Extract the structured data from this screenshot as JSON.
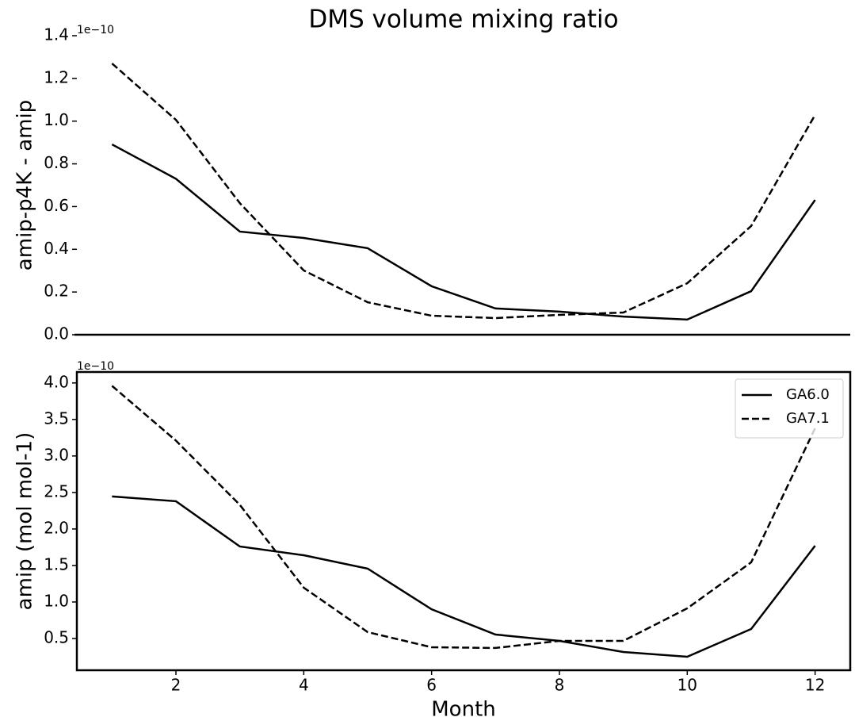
{
  "chart_data": [
    {
      "type": "line",
      "title": "DMS volume mixing ratio",
      "ylabel": "amip-p4K - amip",
      "offset_text": "1e−10",
      "x": [
        1,
        2,
        3,
        4,
        5,
        6,
        7,
        8,
        9,
        10,
        11,
        12
      ],
      "series": [
        {
          "name": "GA6.0",
          "color": "#000000",
          "linestyle": "solid",
          "values": [
            0.891,
            0.73,
            0.483,
            0.453,
            0.405,
            0.227,
            0.123,
            0.108,
            0.085,
            0.071,
            0.204,
            0.631
          ]
        },
        {
          "name": "GA7.1",
          "color": "#000000",
          "linestyle": "dashed",
          "values": [
            1.27,
            1.006,
            0.616,
            0.301,
            0.152,
            0.089,
            0.078,
            0.093,
            0.104,
            0.241,
            0.509,
            1.029
          ]
        }
      ],
      "xlim": [
        0.45,
        12.55
      ],
      "ylim": [
        0,
        1.4
      ],
      "yticks": [
        {
          "value": 0,
          "label": "0.0"
        },
        0.2,
        0.4,
        0.6,
        0.8,
        {
          "value": 1,
          "label": "1.0"
        },
        1.2,
        1.4
      ]
    },
    {
      "type": "line",
      "ylabel": "amip (mol mol-1)",
      "xlabel": "Month",
      "offset_text": "1e−10",
      "legend": "upper right",
      "x": [
        1,
        2,
        3,
        4,
        5,
        6,
        7,
        8,
        9,
        10,
        11,
        12
      ],
      "series": [
        {
          "name": "GA6.0",
          "color": "#000000",
          "linestyle": "solid",
          "values": [
            2.446,
            2.38,
            1.76,
            1.64,
            1.457,
            0.9,
            0.554,
            0.467,
            0.315,
            0.25,
            0.63,
            1.77
          ]
        },
        {
          "name": "GA7.1",
          "color": "#000000",
          "linestyle": "dashed",
          "values": [
            3.96,
            3.21,
            2.33,
            1.196,
            0.587,
            0.38,
            0.37,
            0.467,
            0.467,
            0.913,
            1.543,
            3.38
          ]
        }
      ],
      "xlim": [
        0.45,
        12.55
      ],
      "ylim": [
        0.065,
        4.15
      ],
      "xticks": [
        2,
        4,
        6,
        8,
        10,
        12
      ],
      "yticks": [
        0.5,
        {
          "value": 1,
          "label": "1.0"
        },
        1.5,
        {
          "value": 2,
          "label": "2.0"
        },
        2.5,
        {
          "value": 3,
          "label": "3.0"
        },
        3.5,
        {
          "value": 4,
          "label": "4.0"
        }
      ]
    }
  ]
}
